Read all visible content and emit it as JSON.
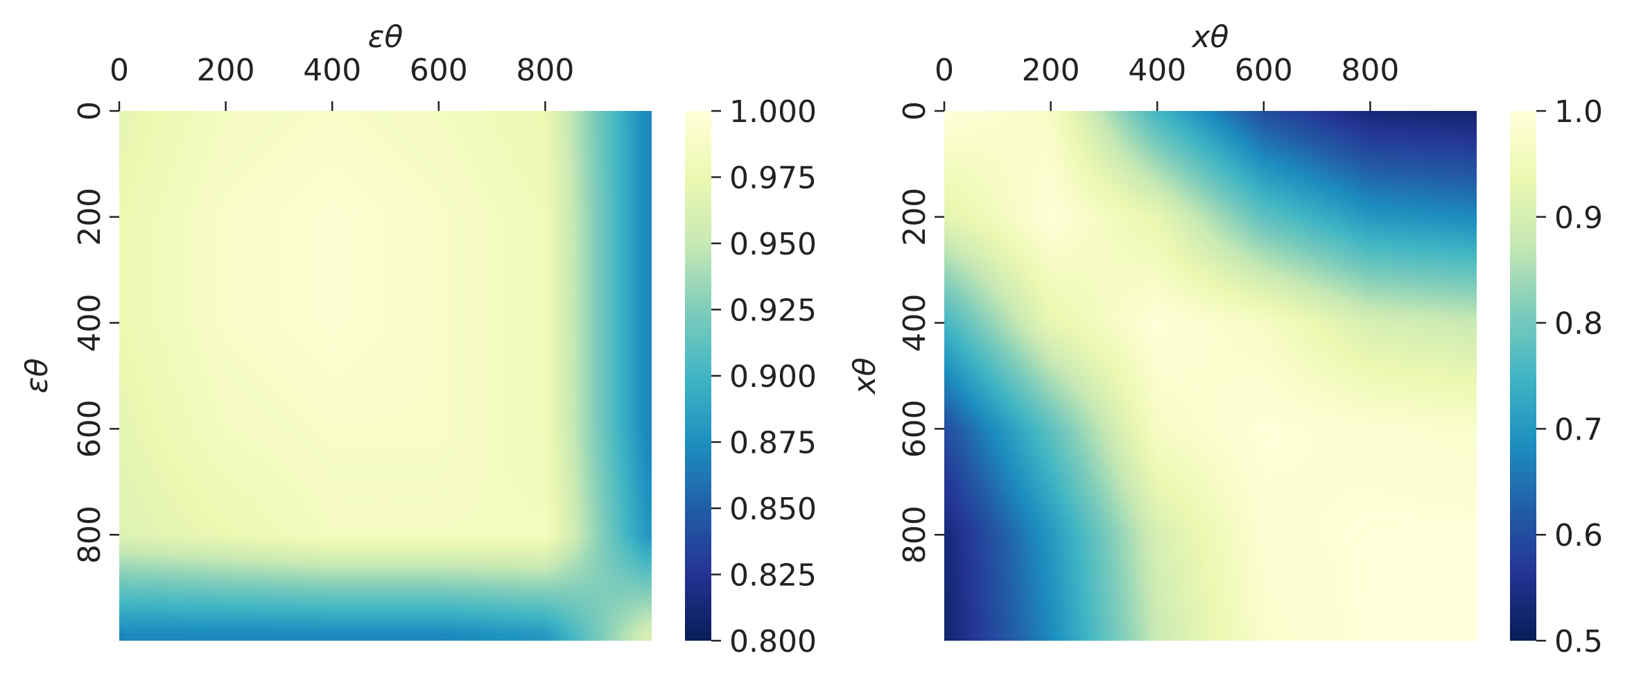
{
  "colormap": {
    "name": "YlGnBu",
    "stops": [
      "#ffffd9",
      "#edf8b1",
      "#c7e9b4",
      "#7fcdbb",
      "#41b6c4",
      "#1d91c0",
      "#225ea8",
      "#253494",
      "#081d58"
    ]
  },
  "chart_data": [
    {
      "type": "heatmap",
      "title": "",
      "xlabel": "εθ",
      "ylabel": "εθ",
      "xticks": [
        "0",
        "200",
        "400",
        "600",
        "800"
      ],
      "yticks": [
        "0",
        "200",
        "400",
        "600",
        "800"
      ],
      "x_range": [
        0,
        1000
      ],
      "y_range": [
        0,
        1000
      ],
      "x_axis_position": "top",
      "colorbar": {
        "vmin": 0.8,
        "vmax": 1.0,
        "ticks": [
          "0.800",
          "0.825",
          "0.850",
          "0.875",
          "0.900",
          "0.925",
          "0.950",
          "0.975",
          "1.000"
        ]
      },
      "description_of_values": "near 1.0 everywhere (0.97-1.0), dropping to ~0.87 along the last column and last row",
      "grid_samples": {
        "x": [
          0,
          200,
          400,
          600,
          800,
          990
        ],
        "y": [
          0,
          200,
          400,
          600,
          800,
          990
        ],
        "z": [
          [
            0.97,
            0.985,
            0.99,
            0.985,
            0.975,
            0.87
          ],
          [
            0.975,
            0.99,
            0.995,
            0.99,
            0.98,
            0.87
          ],
          [
            0.975,
            0.99,
            0.995,
            0.99,
            0.98,
            0.87
          ],
          [
            0.97,
            0.985,
            0.99,
            0.99,
            0.98,
            0.87
          ],
          [
            0.965,
            0.975,
            0.985,
            0.985,
            0.985,
            0.88
          ],
          [
            0.87,
            0.87,
            0.87,
            0.87,
            0.88,
            0.96
          ]
        ]
      }
    },
    {
      "type": "heatmap",
      "title": "",
      "xlabel": "xθ",
      "ylabel": "xθ",
      "xticks": [
        "0",
        "200",
        "400",
        "600",
        "800"
      ],
      "yticks": [
        "0",
        "200",
        "400",
        "600",
        "800"
      ],
      "x_range": [
        0,
        1000
      ],
      "y_range": [
        0,
        1000
      ],
      "x_axis_position": "top",
      "colorbar": {
        "vmin": 0.5,
        "vmax": 1.0,
        "ticks": [
          "0.5",
          "0.6",
          "0.7",
          "0.8",
          "0.9",
          "1.0"
        ]
      },
      "description_of_values": "1.0 along the diagonal, decaying toward ~0.5 at the top-right and bottom-left corners; high values in the lower-right region",
      "grid_samples": {
        "x": [
          0,
          200,
          400,
          600,
          800,
          1000
        ],
        "y": [
          0,
          200,
          400,
          600,
          800,
          1000
        ],
        "z": [
          [
            1.0,
            0.97,
            0.75,
            0.6,
            0.53,
            0.52
          ],
          [
            0.92,
            1.0,
            0.93,
            0.78,
            0.7,
            0.68
          ],
          [
            0.75,
            0.93,
            1.0,
            0.97,
            0.9,
            0.88
          ],
          [
            0.6,
            0.78,
            0.97,
            1.0,
            0.99,
            0.98
          ],
          [
            0.53,
            0.7,
            0.9,
            0.99,
            1.0,
            1.0
          ],
          [
            0.52,
            0.68,
            0.88,
            0.98,
            1.0,
            1.0
          ]
        ]
      }
    }
  ]
}
